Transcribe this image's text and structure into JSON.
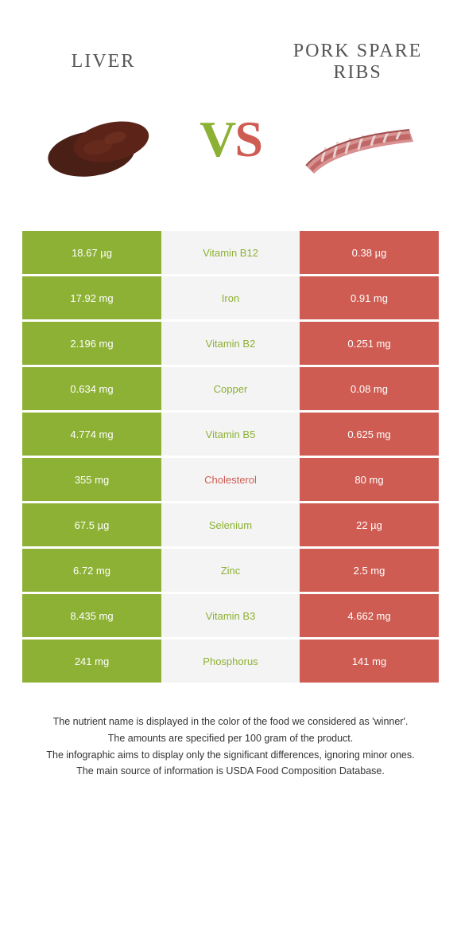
{
  "colors": {
    "left": "#8db135",
    "right": "#cf5c52",
    "mid_bg": "#f4f4f4",
    "title_text": "#555555"
  },
  "foods": {
    "left": {
      "title": "LIVER"
    },
    "right": {
      "title": "PORK SPARE RIBS"
    }
  },
  "vs": {
    "v": "V",
    "s": "S"
  },
  "rows": [
    {
      "left": "18.67 µg",
      "name": "Vitamin B12",
      "right": "0.38 µg",
      "winner": "left"
    },
    {
      "left": "17.92 mg",
      "name": "Iron",
      "right": "0.91 mg",
      "winner": "left"
    },
    {
      "left": "2.196 mg",
      "name": "Vitamin B2",
      "right": "0.251 mg",
      "winner": "left"
    },
    {
      "left": "0.634 mg",
      "name": "Copper",
      "right": "0.08 mg",
      "winner": "left"
    },
    {
      "left": "4.774 mg",
      "name": "Vitamin B5",
      "right": "0.625 mg",
      "winner": "left"
    },
    {
      "left": "355 mg",
      "name": "Cholesterol",
      "right": "80 mg",
      "winner": "right"
    },
    {
      "left": "67.5 µg",
      "name": "Selenium",
      "right": "22 µg",
      "winner": "left"
    },
    {
      "left": "6.72 mg",
      "name": "Zinc",
      "right": "2.5 mg",
      "winner": "left"
    },
    {
      "left": "8.435 mg",
      "name": "Vitamin B3",
      "right": "4.662 mg",
      "winner": "left"
    },
    {
      "left": "241 mg",
      "name": "Phosphorus",
      "right": "141 mg",
      "winner": "left"
    }
  ],
  "footnotes": [
    "The nutrient name is displayed in the color of the food we considered as 'winner'.",
    "The amounts are specified per 100 gram of the product.",
    "The infographic aims to display only the significant differences, ignoring minor ones.",
    "The main source of information is USDA Food Composition Database."
  ]
}
